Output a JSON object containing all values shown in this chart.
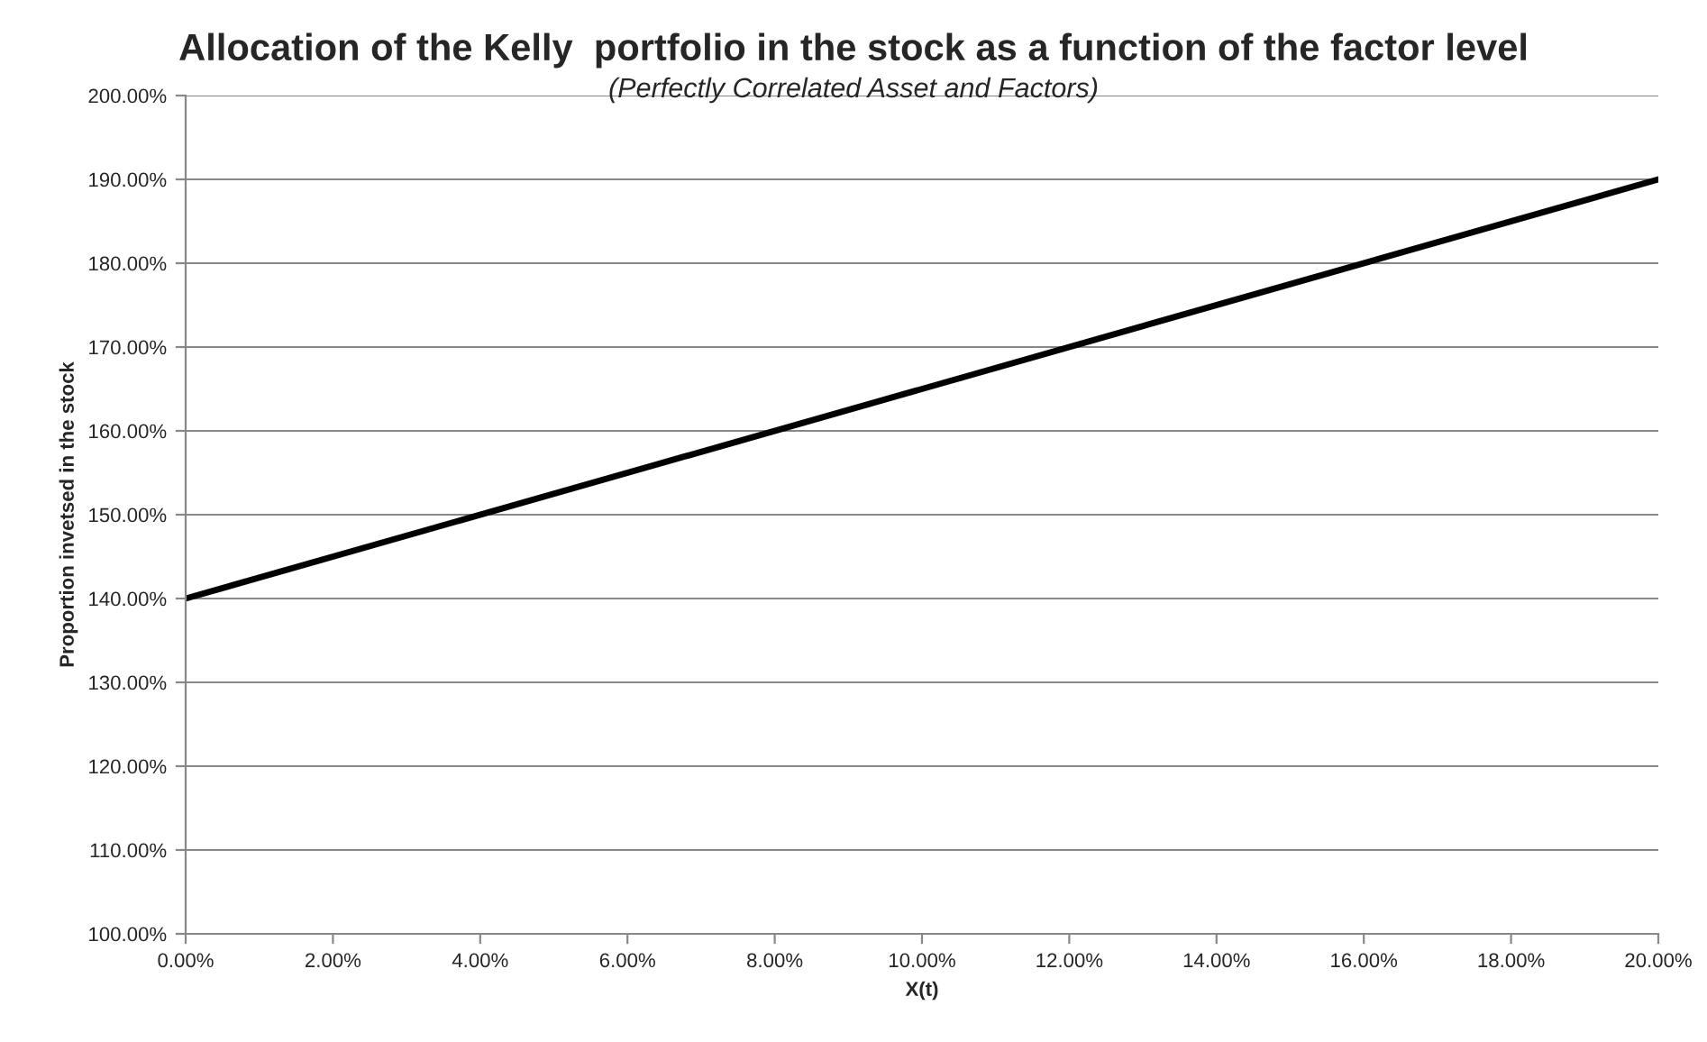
{
  "chart_data": {
    "type": "line",
    "title": "Allocation of the Kelly  portfolio in the stock as a function of the factor level",
    "subtitle": "(Perfectly Correlated Asset and Factors)",
    "xlabel": "X(t)",
    "ylabel": "Proportion invetsed in the stock",
    "x": [
      0,
      20
    ],
    "series": [
      {
        "color": "#000000",
        "values": [
          140,
          190
        ]
      }
    ],
    "xlim": [
      0,
      20
    ],
    "ylim": [
      100,
      200
    ],
    "xticks": [
      {
        "value": 0,
        "label": "0.00%"
      },
      {
        "value": 2,
        "label": "2.00%"
      },
      {
        "value": 4,
        "label": "4.00%"
      },
      {
        "value": 6,
        "label": "6.00%"
      },
      {
        "value": 8,
        "label": "8.00%"
      },
      {
        "value": 10,
        "label": "10.00%"
      },
      {
        "value": 12,
        "label": "12.00%"
      },
      {
        "value": 14,
        "label": "14.00%"
      },
      {
        "value": 16,
        "label": "16.00%"
      },
      {
        "value": 18,
        "label": "18.00%"
      },
      {
        "value": 20,
        "label": "20.00%"
      }
    ],
    "yticks": [
      {
        "value": 100,
        "label": "100.00%"
      },
      {
        "value": 110,
        "label": "110.00%"
      },
      {
        "value": 120,
        "label": "120.00%"
      },
      {
        "value": 130,
        "label": "130.00%"
      },
      {
        "value": 140,
        "label": "140.00%"
      },
      {
        "value": 150,
        "label": "150.00%"
      },
      {
        "value": 160,
        "label": "160.00%"
      },
      {
        "value": 170,
        "label": "170.00%"
      },
      {
        "value": 180,
        "label": "180.00%"
      },
      {
        "value": 190,
        "label": "190.00%"
      },
      {
        "value": 200,
        "label": "200.00%"
      }
    ],
    "grid": "y",
    "marker": "none",
    "line_style": "solid"
  }
}
